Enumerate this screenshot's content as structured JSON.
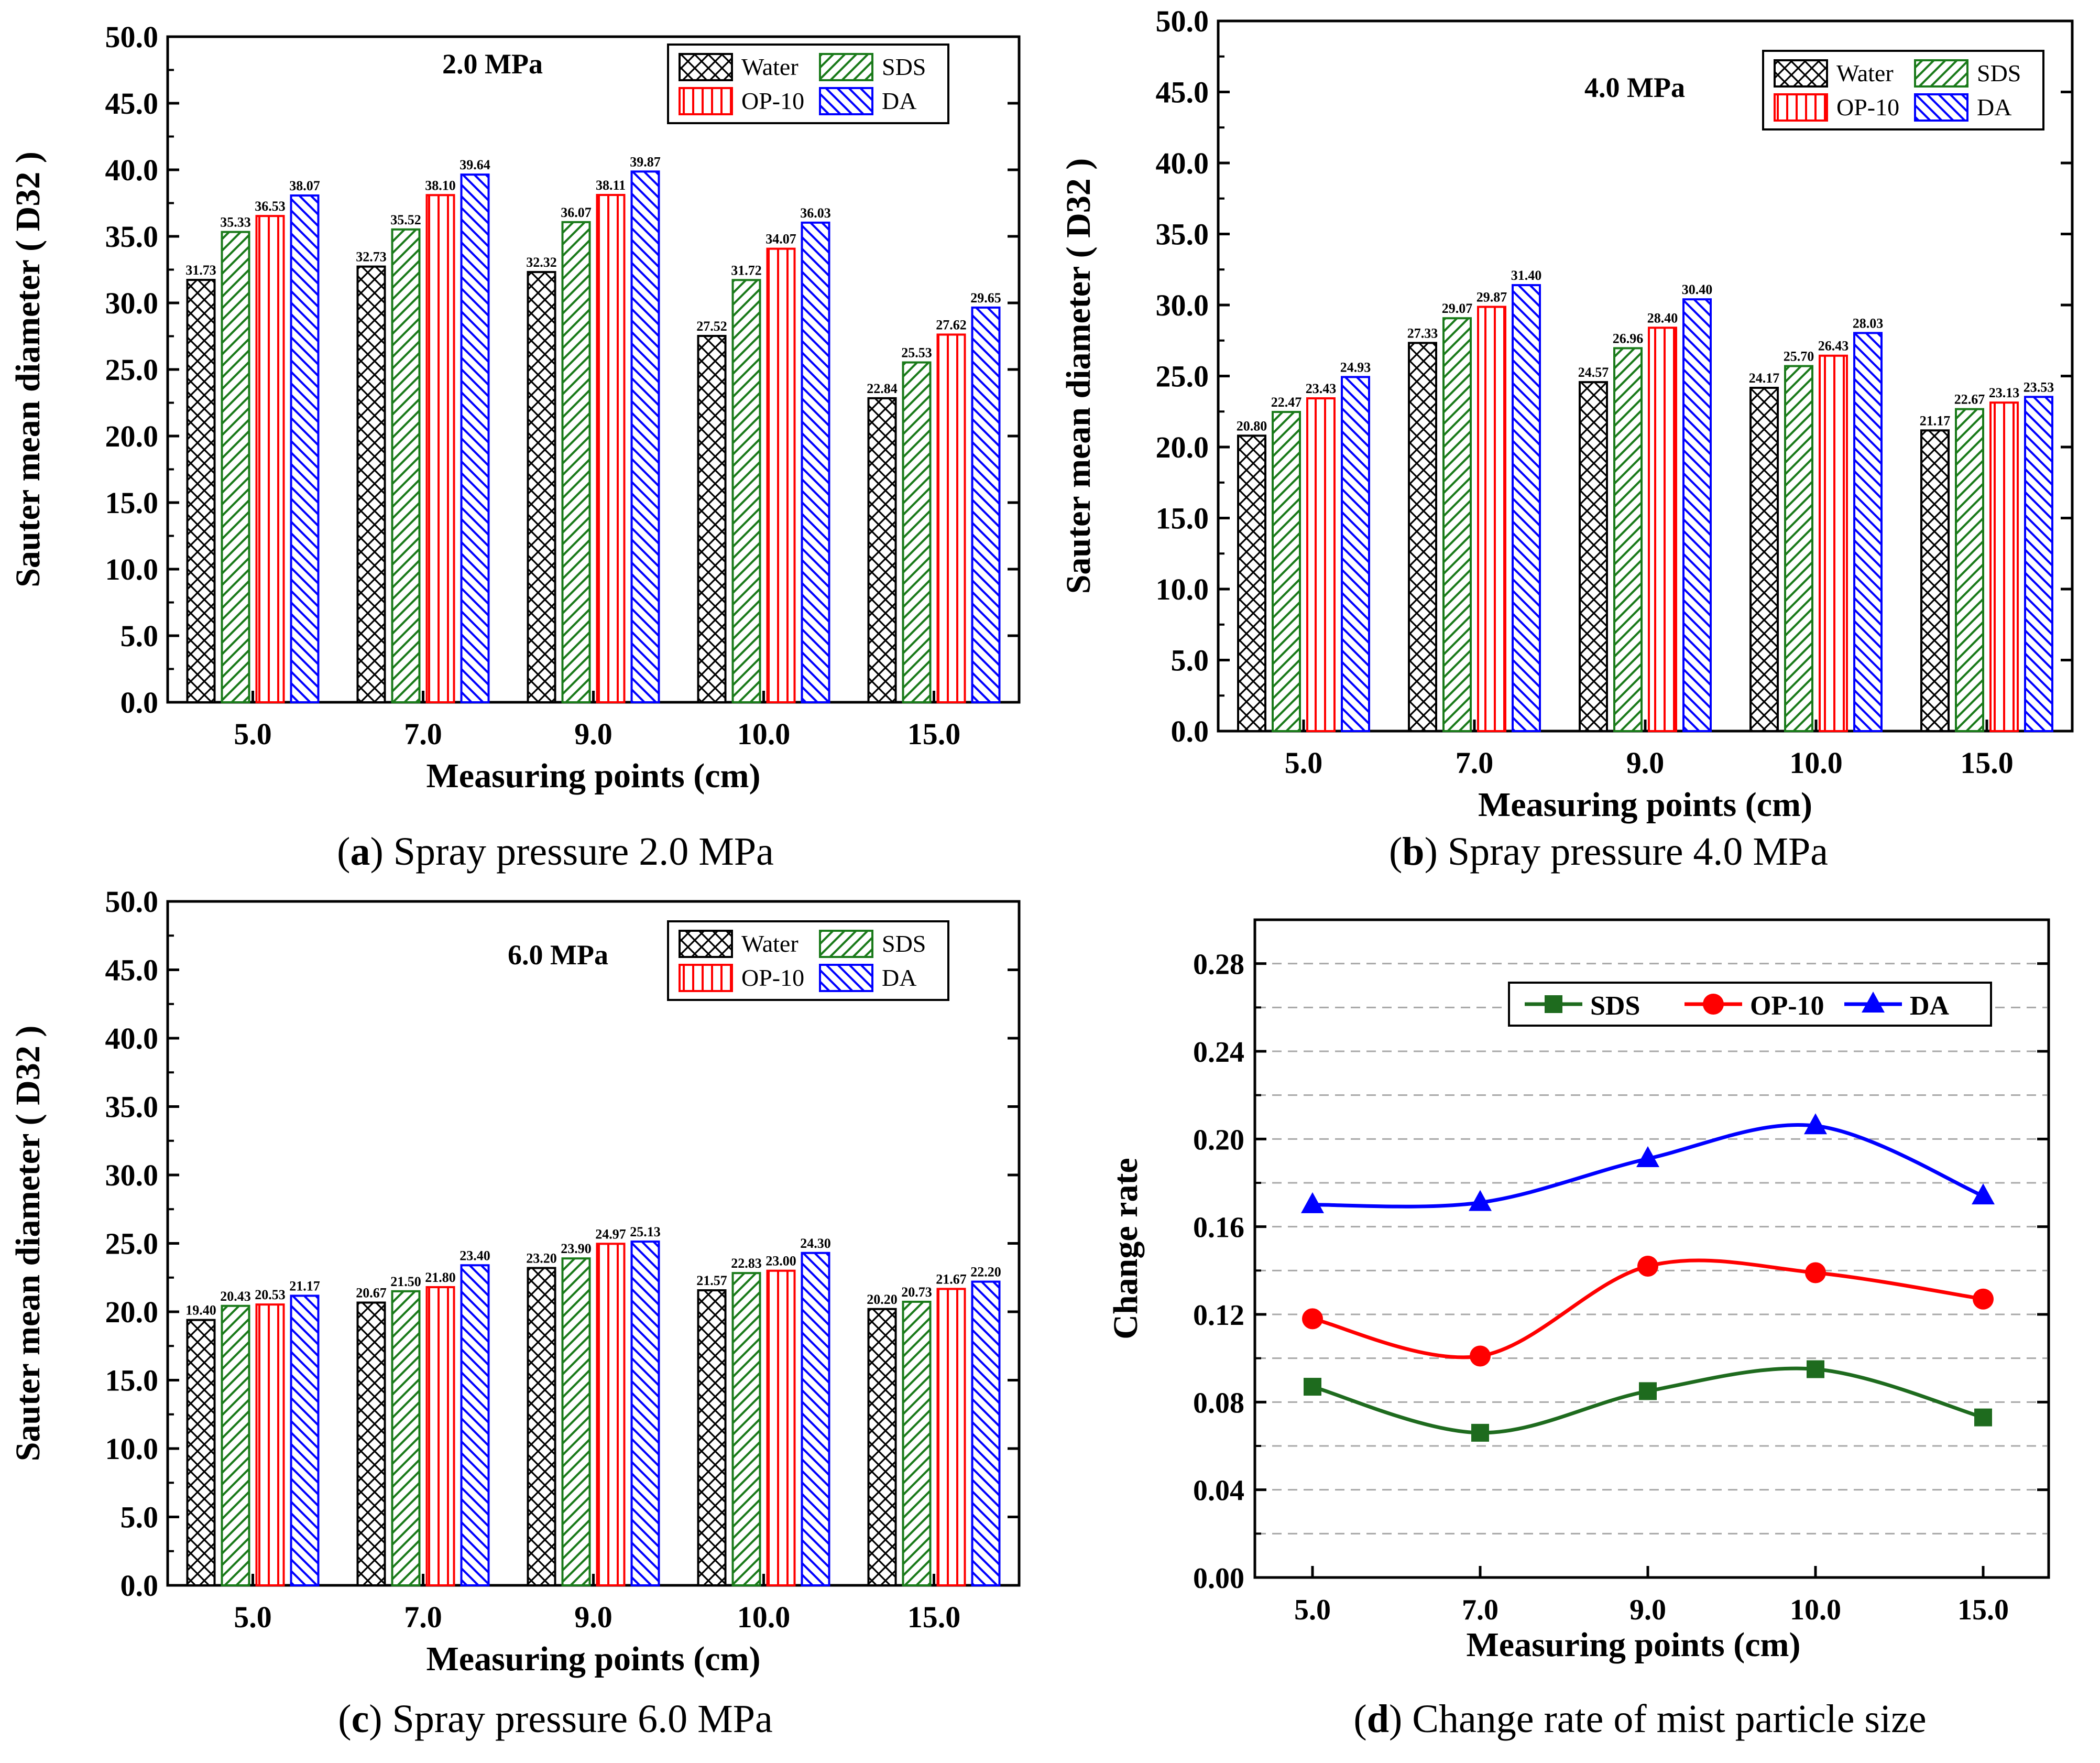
{
  "chart_data": [
    {
      "id": "a",
      "type": "bar",
      "pressure_label": "2.0 MPa",
      "caption_letter": "a",
      "caption_text": " Spray pressure 2.0 MPa",
      "xlabel": "Measuring points (cm)",
      "ylabel": "Sauter mean diameter ( D32 )",
      "categories": [
        "5.0",
        "7.0",
        "9.0",
        "10.0",
        "15.0"
      ],
      "ylim": [
        0,
        50
      ],
      "yticks": [
        "0.0",
        "5.0",
        "10.0",
        "15.0",
        "20.0",
        "25.0",
        "30.0",
        "35.0",
        "40.0",
        "45.0",
        "50.0"
      ],
      "series": [
        {
          "name": "Water",
          "values": [
            31.73,
            32.73,
            32.32,
            27.52,
            22.84
          ],
          "labels": [
            "31.73",
            "32.73",
            "32.32",
            "27.52",
            "22.84"
          ]
        },
        {
          "name": "SDS",
          "values": [
            35.33,
            35.52,
            36.07,
            31.72,
            25.53
          ],
          "labels": [
            "35.33",
            "35.52",
            "36.07",
            "31.72",
            "25.53"
          ]
        },
        {
          "name": "OP-10",
          "values": [
            36.53,
            38.1,
            38.11,
            34.07,
            27.62
          ],
          "labels": [
            "36.53",
            "38.10",
            "38.11",
            "34.07",
            "27.62"
          ]
        },
        {
          "name": "DA",
          "values": [
            38.07,
            39.64,
            39.87,
            36.03,
            29.65
          ],
          "labels": [
            "38.07",
            "39.64",
            "39.87",
            "36.03",
            "29.65"
          ]
        }
      ]
    },
    {
      "id": "b",
      "type": "bar",
      "pressure_label": "4.0 MPa",
      "caption_letter": "b",
      "caption_text": " Spray pressure 4.0 MPa",
      "xlabel": "Measuring points (cm)",
      "ylabel": "Sauter mean diameter ( D32 )",
      "categories": [
        "5.0",
        "7.0",
        "9.0",
        "10.0",
        "15.0"
      ],
      "ylim": [
        0,
        50
      ],
      "yticks": [
        "0.0",
        "5.0",
        "10.0",
        "15.0",
        "20.0",
        "25.0",
        "30.0",
        "35.0",
        "40.0",
        "45.0",
        "50.0"
      ],
      "series": [
        {
          "name": "Water",
          "values": [
            20.8,
            27.33,
            24.57,
            24.17,
            21.17
          ],
          "labels": [
            "20.80",
            "27.33",
            "24.57",
            "24.17",
            "21.17"
          ]
        },
        {
          "name": "SDS",
          "values": [
            22.47,
            29.07,
            26.96,
            25.7,
            22.67
          ],
          "labels": [
            "22.47",
            "29.07",
            "26.96",
            "25.70",
            "22.67"
          ]
        },
        {
          "name": "OP-10",
          "values": [
            23.43,
            29.87,
            28.4,
            26.43,
            23.13
          ],
          "labels": [
            "23.43",
            "29.87",
            "28.40",
            "26.43",
            "23.13"
          ]
        },
        {
          "name": "DA",
          "values": [
            24.93,
            31.4,
            30.4,
            28.03,
            23.53
          ],
          "labels": [
            "24.93",
            "31.40",
            "30.40",
            "28.03",
            "23.53"
          ]
        }
      ]
    },
    {
      "id": "c",
      "type": "bar",
      "pressure_label": "6.0 MPa",
      "caption_letter": "c",
      "caption_text": " Spray pressure 6.0 MPa",
      "xlabel": "Measuring points (cm)",
      "ylabel": "Sauter mean diameter ( D32 )",
      "categories": [
        "5.0",
        "7.0",
        "9.0",
        "10.0",
        "15.0"
      ],
      "ylim": [
        0,
        50
      ],
      "yticks": [
        "0.0",
        "5.0",
        "10.0",
        "15.0",
        "20.0",
        "25.0",
        "30.0",
        "35.0",
        "40.0",
        "45.0",
        "50.0"
      ],
      "series": [
        {
          "name": "Water",
          "values": [
            19.4,
            20.67,
            23.2,
            21.57,
            20.2
          ],
          "labels": [
            "19.40",
            "20.67",
            "23.20",
            "21.57",
            "20.20"
          ]
        },
        {
          "name": "SDS",
          "values": [
            20.43,
            21.5,
            23.9,
            22.83,
            20.73
          ],
          "labels": [
            "20.43",
            "21.50",
            "23.90",
            "22.83",
            "20.73"
          ]
        },
        {
          "name": "OP-10",
          "values": [
            20.53,
            21.8,
            24.97,
            23.0,
            21.67
          ],
          "labels": [
            "20.53",
            "21.80",
            "24.97",
            "23.00",
            "21.67"
          ]
        },
        {
          "name": "DA",
          "values": [
            21.17,
            23.4,
            25.13,
            24.3,
            22.2
          ],
          "labels": [
            "21.17",
            "23.40",
            "25.13",
            "24.30",
            "22.20"
          ]
        }
      ]
    },
    {
      "id": "d",
      "type": "line",
      "caption_letter": "d",
      "caption_text": " Change rate of mist particle size",
      "xlabel": "Measuring points (cm)",
      "ylabel": "Change rate",
      "categories": [
        "5.0",
        "7.0",
        "9.0",
        "10.0",
        "15.0"
      ],
      "ylim": [
        0,
        0.3
      ],
      "yticks": [
        "0.00",
        "0.04",
        "0.08",
        "0.12",
        "0.16",
        "0.20",
        "0.24",
        "0.28"
      ],
      "grid": true,
      "legend_position": "top-right",
      "series": [
        {
          "name": "SDS",
          "marker": "square",
          "values": [
            0.087,
            0.066,
            0.085,
            0.095,
            0.073
          ]
        },
        {
          "name": "OP-10",
          "marker": "circle",
          "values": [
            0.118,
            0.101,
            0.142,
            0.139,
            0.127
          ]
        },
        {
          "name": "DA",
          "marker": "triangle",
          "values": [
            0.17,
            0.171,
            0.191,
            0.206,
            0.174
          ]
        }
      ]
    }
  ],
  "colors": {
    "Water": "#000000",
    "SDS": "#1a7a1a",
    "OP-10": "#ff0000",
    "DA": "#0000ff",
    "SDS_line": "#1e6b1e",
    "grid": "#a8a8a8"
  },
  "icons": {
    "Water": "cross-hatch-pattern-icon",
    "SDS": "diagonal-hatch-pattern-icon",
    "OP-10": "vertical-hatch-pattern-icon",
    "DA": "back-diagonal-hatch-pattern-icon"
  }
}
